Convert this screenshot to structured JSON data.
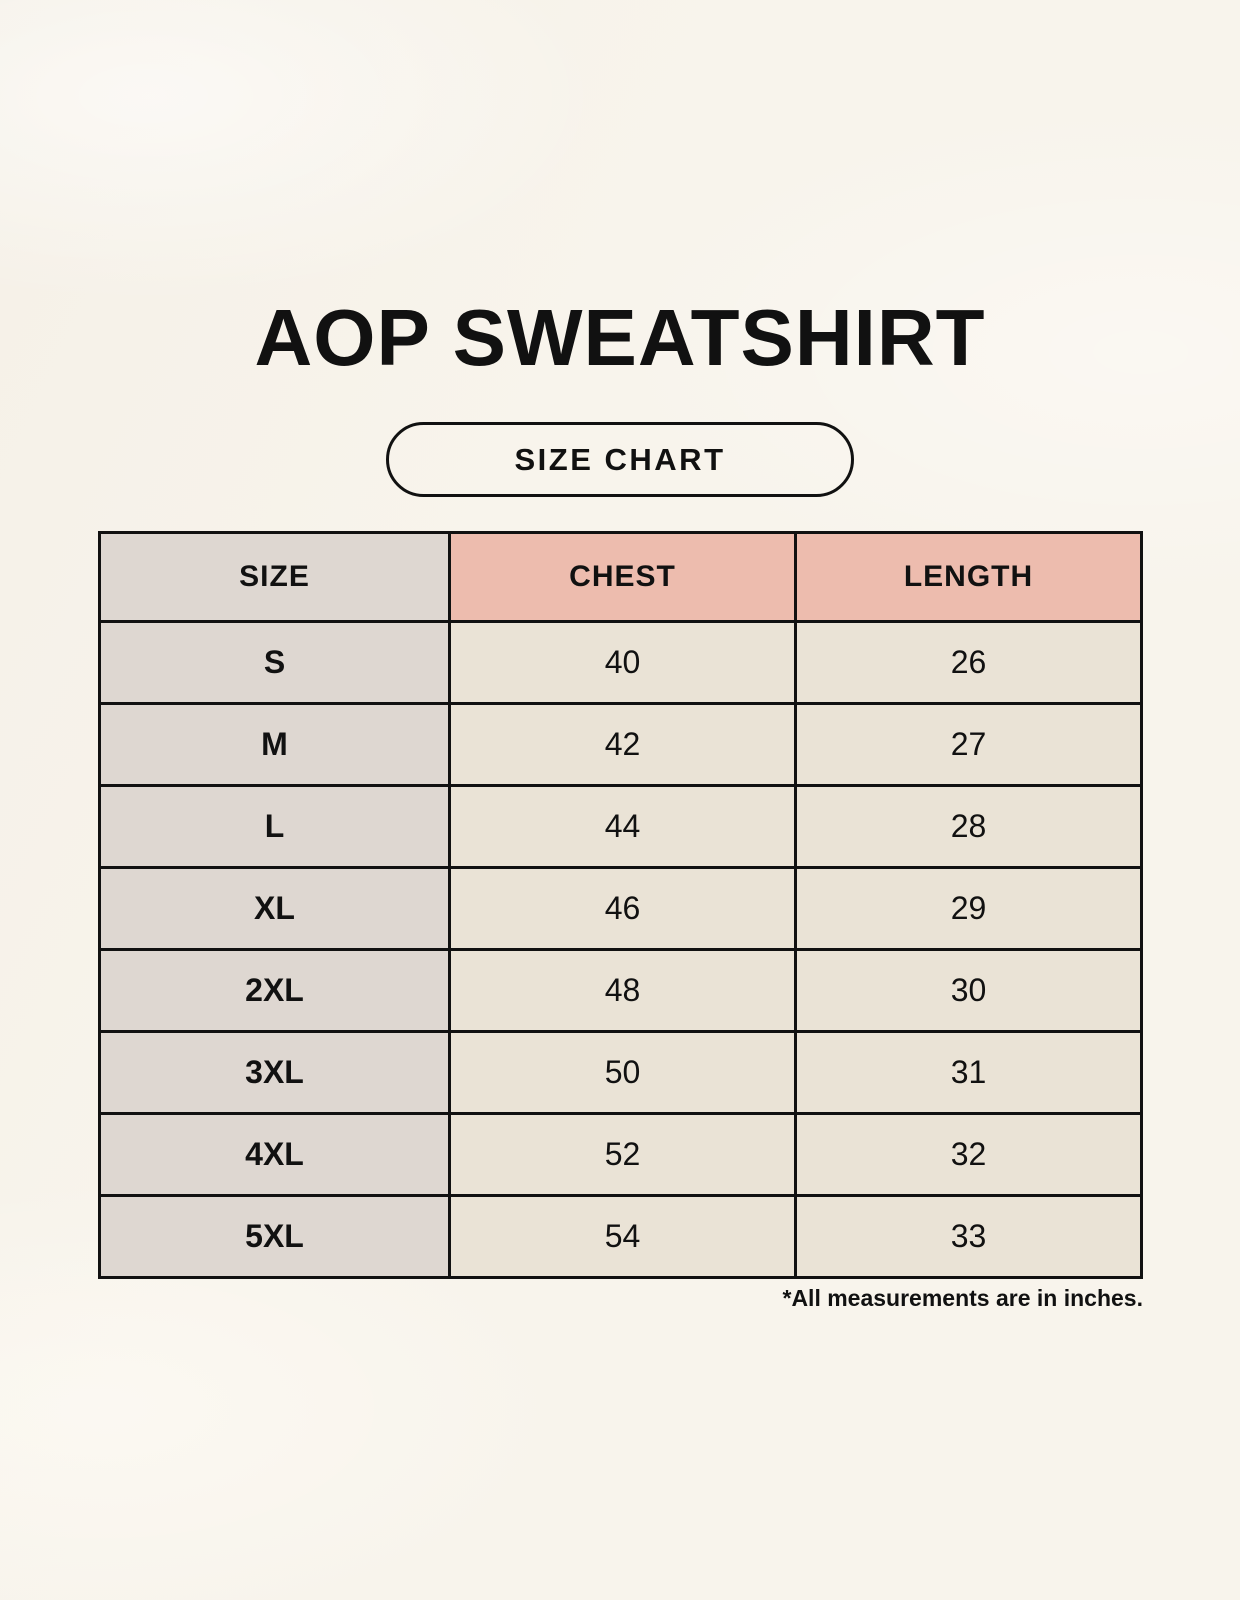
{
  "page": {
    "title": "AOP SWEATSHIRT",
    "badge_label": "SIZE CHART",
    "footnote": "*All measurements are in inches."
  },
  "colors": {
    "background": "#f8f4ec",
    "size_column_bg": "#ded7d1",
    "accent_header_bg": "#edbcae",
    "cell_bg": "#eae3d6",
    "border": "#111111",
    "text": "#111111"
  },
  "chart_data": {
    "type": "table",
    "title": "AOP SWEATSHIRT",
    "columns": [
      "SIZE",
      "CHEST",
      "LENGTH"
    ],
    "rows": [
      [
        "S",
        "40",
        "26"
      ],
      [
        "M",
        "42",
        "27"
      ],
      [
        "L",
        "44",
        "28"
      ],
      [
        "XL",
        "46",
        "29"
      ],
      [
        "2XL",
        "48",
        "30"
      ],
      [
        "3XL",
        "50",
        "31"
      ],
      [
        "4XL",
        "52",
        "32"
      ],
      [
        "5XL",
        "54",
        "33"
      ]
    ],
    "units": "inches",
    "footnote": "*All measurements are in inches."
  }
}
